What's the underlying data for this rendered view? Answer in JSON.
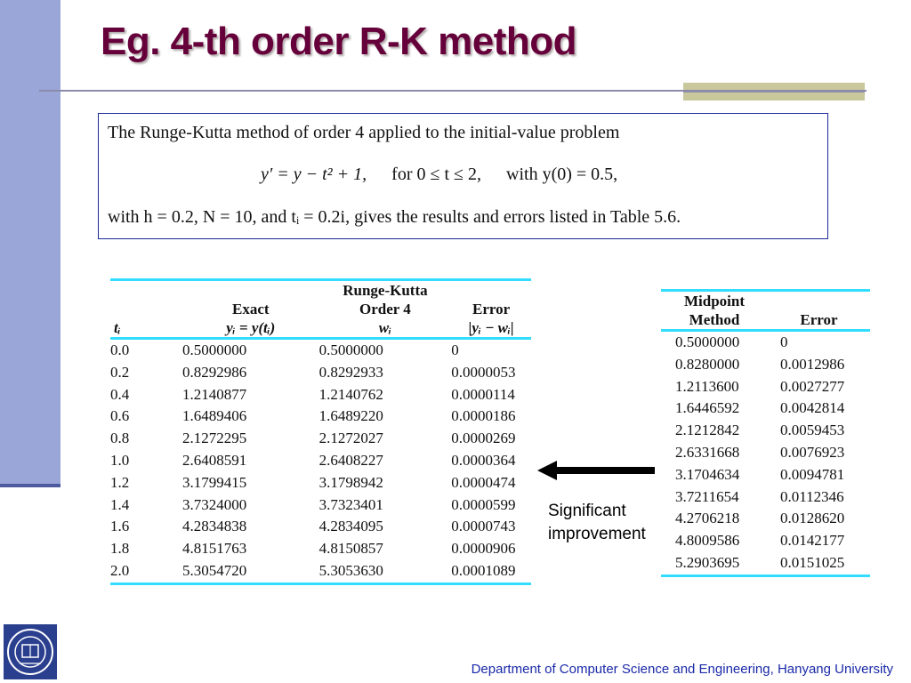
{
  "slide": {
    "title": "Eg. 4-th order R-K method",
    "footer": "Department of Computer Science and Engineering, Hanyang University",
    "note_line1": "Significant",
    "note_line2": "improvement",
    "colors": {
      "title": "#66003b",
      "sidebar": "#9aa6d8",
      "table_rule": "#33ddff",
      "footer": "#1a2aa8"
    },
    "icons": {
      "logo": "hanyang-university-emblem-icon",
      "arrow": "left-arrow-icon"
    }
  },
  "problem": {
    "line1": "The Runge-Kutta method of order 4 applied to the initial-value problem",
    "eq_main": "y′ = y − t² + 1,",
    "eq_range": "for 0 ≤ t ≤ 2,",
    "eq_init": "with y(0) = 0.5,",
    "line3": "with h = 0.2, N = 10, and tᵢ = 0.2i, gives the results and errors listed in Table 5.6."
  },
  "rk_table": {
    "headers": {
      "t": "tᵢ",
      "exact_top": "Exact",
      "exact_bottom": "yᵢ = y(tᵢ)",
      "rk_top": "Runge-Kutta",
      "rk_mid": "Order 4",
      "rk_bottom": "wᵢ",
      "err_top": "Error",
      "err_bottom": "|yᵢ − wᵢ|"
    },
    "rows": [
      [
        "0.0",
        "0.5000000",
        "0.5000000",
        "0"
      ],
      [
        "0.2",
        "0.8292986",
        "0.8292933",
        "0.0000053"
      ],
      [
        "0.4",
        "1.2140877",
        "1.2140762",
        "0.0000114"
      ],
      [
        "0.6",
        "1.6489406",
        "1.6489220",
        "0.0000186"
      ],
      [
        "0.8",
        "2.1272295",
        "2.1272027",
        "0.0000269"
      ],
      [
        "1.0",
        "2.6408591",
        "2.6408227",
        "0.0000364"
      ],
      [
        "1.2",
        "3.1799415",
        "3.1798942",
        "0.0000474"
      ],
      [
        "1.4",
        "3.7324000",
        "3.7323401",
        "0.0000599"
      ],
      [
        "1.6",
        "4.2834838",
        "4.2834095",
        "0.0000743"
      ],
      [
        "1.8",
        "4.8151763",
        "4.8150857",
        "0.0000906"
      ],
      [
        "2.0",
        "5.3054720",
        "5.3053630",
        "0.0001089"
      ]
    ]
  },
  "midpoint_table": {
    "headers": {
      "method_top": "Midpoint",
      "method_bottom": "Method",
      "error": "Error"
    },
    "rows": [
      [
        "0.5000000",
        "0"
      ],
      [
        "0.8280000",
        "0.0012986"
      ],
      [
        "1.2113600",
        "0.0027277"
      ],
      [
        "1.6446592",
        "0.0042814"
      ],
      [
        "2.1212842",
        "0.0059453"
      ],
      [
        "2.6331668",
        "0.0076923"
      ],
      [
        "3.1704634",
        "0.0094781"
      ],
      [
        "3.7211654",
        "0.0112346"
      ],
      [
        "4.2706218",
        "0.0128620"
      ],
      [
        "4.8009586",
        "0.0142177"
      ],
      [
        "5.2903695",
        "0.0151025"
      ]
    ]
  }
}
